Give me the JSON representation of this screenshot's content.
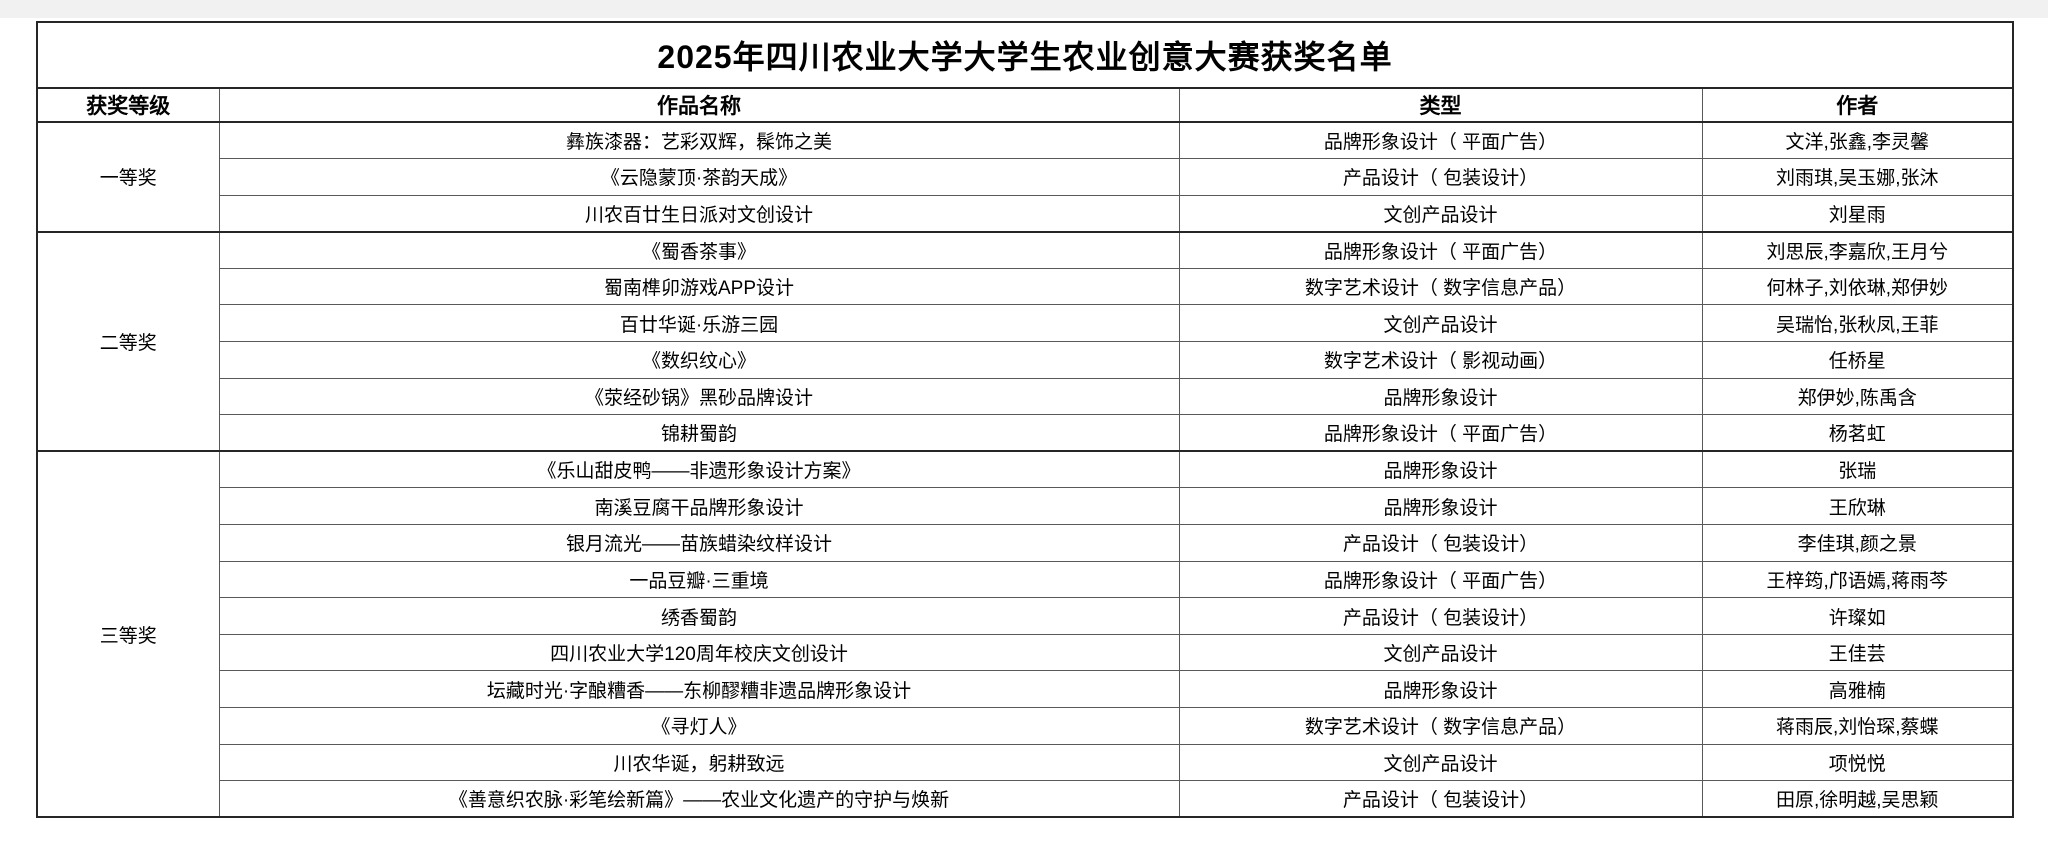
{
  "table": {
    "title": "2025年四川农业大学大学生农业创意大赛获奖名单",
    "columns": [
      "获奖等级",
      "作品名称",
      "类型",
      "作者"
    ],
    "groups": [
      {
        "level": "一等奖",
        "rows": [
          {
            "work": "彝族漆器：艺彩双辉，髹饰之美",
            "type": "品牌形象设计（ 平面广告）",
            "authors": "文洋,张鑫,李灵馨"
          },
          {
            "work": "《云隐蒙顶·茶韵天成》",
            "type": "产品设计（ 包装设计）",
            "authors": "刘雨琪,吴玉娜,张沐"
          },
          {
            "work": "川农百廿生日派对文创设计",
            "type": "文创产品设计",
            "authors": "刘星雨"
          }
        ]
      },
      {
        "level": "二等奖",
        "rows": [
          {
            "work": "《蜀香茶事》",
            "type": "品牌形象设计（ 平面广告）",
            "authors": "刘思辰,李嘉欣,王月兮"
          },
          {
            "work": "蜀南榫卯游戏APP设计",
            "type": "数字艺术设计（ 数字信息产品）",
            "authors": "何林子,刘依琳,郑伊妙"
          },
          {
            "work": "百廿华诞·乐游三园",
            "type": "文创产品设计",
            "authors": "吴瑞怡,张秋凤,王菲"
          },
          {
            "work": "《数织纹心》",
            "type": "数字艺术设计（ 影视动画）",
            "authors": "任桥星"
          },
          {
            "work": "《荥经砂锅》黑砂品牌设计",
            "type": "品牌形象设计",
            "authors": "郑伊妙,陈禹含"
          },
          {
            "work": "锦耕蜀韵",
            "type": "品牌形象设计（ 平面广告）",
            "authors": "杨茗虹"
          }
        ]
      },
      {
        "level": "三等奖",
        "rows": [
          {
            "work": "《乐山甜皮鸭——非遗形象设计方案》",
            "type": "品牌形象设计",
            "authors": "张瑞"
          },
          {
            "work": "南溪豆腐干品牌形象设计",
            "type": "品牌形象设计",
            "authors": "王欣琳"
          },
          {
            "work": "银月流光——苗族蜡染纹样设计",
            "type": "产品设计（ 包装设计）",
            "authors": "李佳琪,颜之景"
          },
          {
            "work": "一品豆瓣·三重境",
            "type": "品牌形象设计（ 平面广告）",
            "authors": "王梓筠,邝语嫣,蒋雨芩"
          },
          {
            "work": "绣香蜀韵",
            "type": "产品设计（ 包装设计）",
            "authors": "许璨如"
          },
          {
            "work": "四川农业大学120周年校庆文创设计",
            "type": "文创产品设计",
            "authors": "王佳芸"
          },
          {
            "work": "坛藏时光·字酿糟香——东柳醪糟非遗品牌形象设计",
            "type": "品牌形象设计",
            "authors": "高雅楠"
          },
          {
            "work": "《寻灯人》",
            "type": "数字艺术设计（ 数字信息产品）",
            "authors": "蒋雨辰,刘怡琛,蔡蝶"
          },
          {
            "work": "川农华诞，躬耕致远",
            "type": "文创产品设计",
            "authors": "项悦悦"
          },
          {
            "work": "《善意织农脉·彩笔绘新篇》——农业文化遗产的守护与焕新",
            "type": "产品设计（ 包装设计）",
            "authors": "田原,徐明越,吴思颖"
          }
        ]
      }
    ]
  }
}
